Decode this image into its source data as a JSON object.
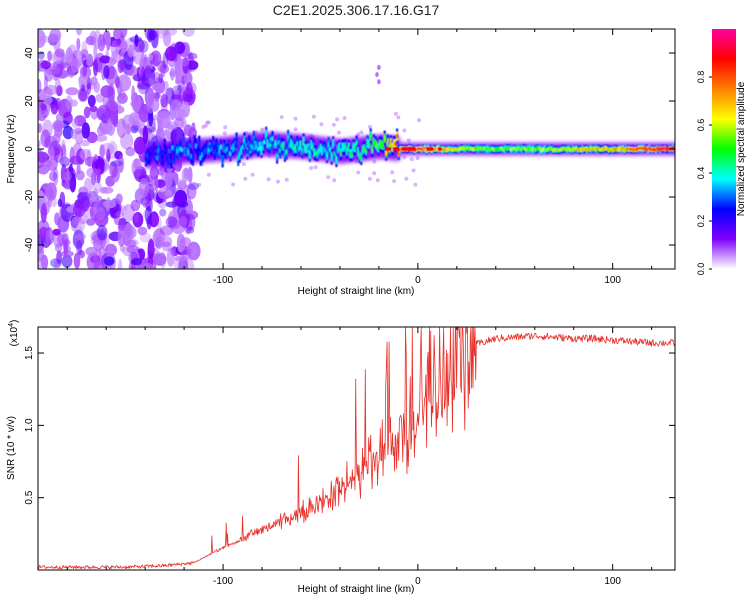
{
  "title": "C2E1.2025.306.17.16.G17",
  "chart_data": [
    {
      "type": "heatmap",
      "title": "C2E1.2025.306.17.16.G17",
      "xlabel": "Height of straight line (km)",
      "ylabel": "Frequency (Hz)",
      "xlim": [
        -195,
        132
      ],
      "ylim": [
        -50,
        50
      ],
      "xticks": [
        -100,
        0,
        100
      ],
      "xtick_labels": [
        "-100",
        "0",
        "100"
      ],
      "yticks": [
        -40,
        -20,
        0,
        20,
        40
      ],
      "ytick_labels": [
        "-40",
        "-20",
        "0",
        "20",
        "40"
      ],
      "noise_region_x": [
        -195,
        -115
      ],
      "signal_track": [
        {
          "x": -140,
          "f": -3,
          "amp": 0.25
        },
        {
          "x": -120,
          "f": -1,
          "amp": 0.3
        },
        {
          "x": -100,
          "f": 0,
          "amp": 0.32
        },
        {
          "x": -80,
          "f": 2,
          "amp": 0.38
        },
        {
          "x": -60,
          "f": 1,
          "amp": 0.4
        },
        {
          "x": -40,
          "f": -1,
          "amp": 0.42
        },
        {
          "x": -20,
          "f": 1,
          "amp": 0.5
        },
        {
          "x": -10,
          "f": 0,
          "amp": 0.82
        },
        {
          "x": 0,
          "f": 0,
          "amp": 0.85
        },
        {
          "x": 20,
          "f": 0,
          "amp": 0.6
        },
        {
          "x": 40,
          "f": 0,
          "amp": 0.55
        },
        {
          "x": 60,
          "f": 0,
          "amp": 0.55
        },
        {
          "x": 80,
          "f": 0,
          "amp": 0.65
        },
        {
          "x": 100,
          "f": 0,
          "amp": 0.7
        },
        {
          "x": 120,
          "f": 0,
          "amp": 0.9
        },
        {
          "x": 132,
          "f": 0,
          "amp": 0.95
        }
      ],
      "colorbar": {
        "label": "Normalized spectral amplitude",
        "range": [
          0,
          1
        ],
        "ticks": [
          0.0,
          0.2,
          0.4,
          0.6,
          0.8
        ],
        "tick_labels": [
          "0.0",
          "0.2",
          "0.4",
          "0.6",
          "0.8"
        ],
        "colors": [
          "#ffffff",
          "#8000ff",
          "#0000ff",
          "#00ffff",
          "#00ff00",
          "#ffff00",
          "#ff8000",
          "#ff0000",
          "#ff00a0"
        ]
      }
    },
    {
      "type": "line",
      "xlabel": "Height of straight line (km)",
      "ylabel": "SNR (10 * v/v)",
      "exponent_label": "(x10",
      "exponent_power": "4",
      "exponent_close": ")",
      "xlim": [
        -195,
        132
      ],
      "ylim": [
        0,
        1.68
      ],
      "xticks": [
        -100,
        0,
        100
      ],
      "xtick_labels": [
        "-100",
        "0",
        "100"
      ],
      "yticks": [
        0.5,
        1.0,
        1.5
      ],
      "ytick_labels": [
        "0.5",
        "1.0",
        "1.5"
      ],
      "color": "#e8302a",
      "series": [
        {
          "name": "SNR",
          "x": [
            -195,
            -170,
            -150,
            -130,
            -115,
            -105,
            -95,
            -85,
            -75,
            -65,
            -55,
            -45,
            -35,
            -25,
            -18,
            -12,
            -6,
            0,
            5,
            10,
            15,
            20,
            25,
            30,
            35,
            40,
            50,
            60,
            70,
            80,
            90,
            100,
            110,
            120,
            132
          ],
          "y": [
            0.02,
            0.02,
            0.02,
            0.03,
            0.05,
            0.12,
            0.18,
            0.25,
            0.3,
            0.36,
            0.42,
            0.5,
            0.6,
            0.7,
            0.78,
            0.85,
            0.95,
            1.05,
            1.15,
            1.25,
            1.35,
            1.45,
            1.52,
            1.56,
            1.58,
            1.6,
            1.61,
            1.62,
            1.61,
            1.6,
            1.6,
            1.59,
            1.58,
            1.57,
            1.57
          ]
        }
      ]
    }
  ]
}
